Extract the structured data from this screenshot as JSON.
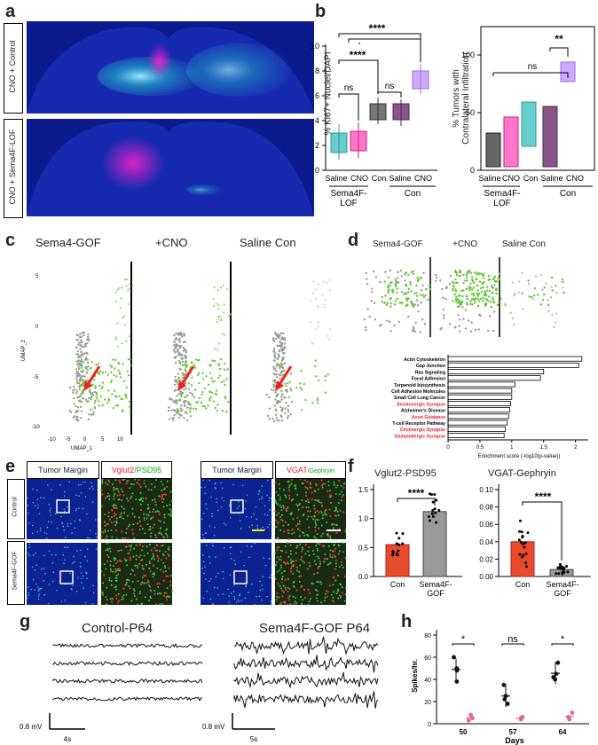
{
  "panels": {
    "a": {
      "label": "a",
      "row1": "CNO + Control",
      "row2": "CNO + Sema4F-LOF"
    },
    "b": {
      "label": "b",
      "left": {
        "ylabel": "% Ki67+ Nuclei/DAPI",
        "ticks": [
          "0",
          "2",
          "4",
          "6",
          "8",
          "10"
        ],
        "groups": [
          "Saline",
          "CNO",
          "Con",
          "Saline",
          "CNO"
        ],
        "group1": "Sema4F-",
        "group1b": "LOF",
        "group2": "Con",
        "sig": [
          "****",
          "****",
          "ns",
          "ns"
        ]
      },
      "right": {
        "ylabel1": "% Tumors with",
        "ylabel2": "Contralateral Infiltration",
        "ticks": [
          "0",
          "50",
          "100"
        ],
        "groups": [
          "Saline",
          "CNO",
          "Con",
          "Saline",
          "CNO"
        ],
        "group1": "Sema4F-",
        "group1b": "LOF",
        "group2": "Con",
        "sig": [
          "**",
          "ns"
        ]
      }
    },
    "c": {
      "label": "c",
      "titles": [
        "Sema4-GOF",
        "+CNO",
        "Saline Con"
      ],
      "ylabel": "UMAP_2",
      "xlabel": "UMAP_1",
      "yticks": [
        "5",
        "0",
        "-5",
        "-10"
      ],
      "xticks": [
        "-10",
        "-5",
        "0",
        "5",
        "10"
      ]
    },
    "d": {
      "label": "d",
      "titles": [
        "Sema4-GOF",
        "+CNO",
        "Saline Con"
      ],
      "terms": [
        {
          "name": "Actin Cytoskeleton",
          "value": 2.1,
          "red": false
        },
        {
          "name": "Gap Junction",
          "value": 2.05,
          "red": false
        },
        {
          "name": "Ras Signaling",
          "value": 1.5,
          "red": false
        },
        {
          "name": "Focal Adhesion",
          "value": 1.45,
          "red": false
        },
        {
          "name": "Terpenoid biosynthesis",
          "value": 1.05,
          "red": false
        },
        {
          "name": "Cell Adhesion Molecules",
          "value": 1.0,
          "red": false
        },
        {
          "name": "Small Cell Lung Cancer",
          "value": 1.0,
          "red": false
        },
        {
          "name": "Serotonergic Synapse",
          "value": 0.98,
          "red": true
        },
        {
          "name": "Alzheimer's Disease",
          "value": 0.97,
          "red": false
        },
        {
          "name": "Axon Guidance",
          "value": 0.95,
          "red": true
        },
        {
          "name": "T-cell Receptor Pathway",
          "value": 0.93,
          "red": false
        },
        {
          "name": "Cholinergic Synapse",
          "value": 0.9,
          "red": true
        },
        {
          "name": "Glutamatergic Synapse",
          "value": 0.88,
          "red": true
        }
      ],
      "xticks": [
        "0",
        "0.5",
        "1",
        "1.5",
        "2"
      ],
      "xlabel": "Enrichment score (-log10(p-value))"
    },
    "e": {
      "label": "e",
      "h1": "Tumor Margin",
      "h2a": "Vglut2",
      "h2b": "/PSD95",
      "h3": "Tumor Margin",
      "h4a": "VGAT",
      "h4b": "/Gephryin",
      "row1": "Control",
      "row2": "Sema4F-GOF"
    },
    "f": {
      "label": "f",
      "left": {
        "title": "Vglut2-PSD95",
        "ticks": [
          "0.0",
          "0.5",
          "1.0",
          "1.5"
        ],
        "cats": [
          "Con",
          "Sema4F-",
          "GOF"
        ],
        "sig": "****",
        "values": [
          0.55,
          1.12
        ]
      },
      "right": {
        "title": "VGAT-Gephryin",
        "ticks": [
          "0.00",
          "0.02",
          "0.04",
          "0.06",
          "0.08",
          "0.10"
        ],
        "cats": [
          "Con",
          "Sema4F-",
          "GOF"
        ],
        "sig": "****",
        "values": [
          0.04,
          0.008
        ]
      }
    },
    "g": {
      "label": "g",
      "title1": "Control-P64",
      "title2": "Sema4F-GOF P64",
      "scale_v": "0.8 mV",
      "scale_t1": "4s",
      "scale_t2": "5s"
    },
    "h": {
      "label": "h",
      "ylabel": "Spikes/hr.",
      "xlabel": "Days",
      "yticks": [
        "0",
        "20",
        "40",
        "60",
        "80"
      ],
      "days": [
        "50",
        "57",
        "64"
      ],
      "sig": [
        "*",
        "ns",
        "*"
      ],
      "black": [
        [
          48,
          60,
          38,
          50
        ],
        [
          25,
          35,
          18,
          22
        ],
        [
          45,
          55,
          42,
          40
        ]
      ],
      "pink": [
        [
          5,
          8,
          3
        ],
        [
          5,
          6,
          4
        ],
        [
          6,
          10,
          4
        ]
      ]
    }
  }
}
